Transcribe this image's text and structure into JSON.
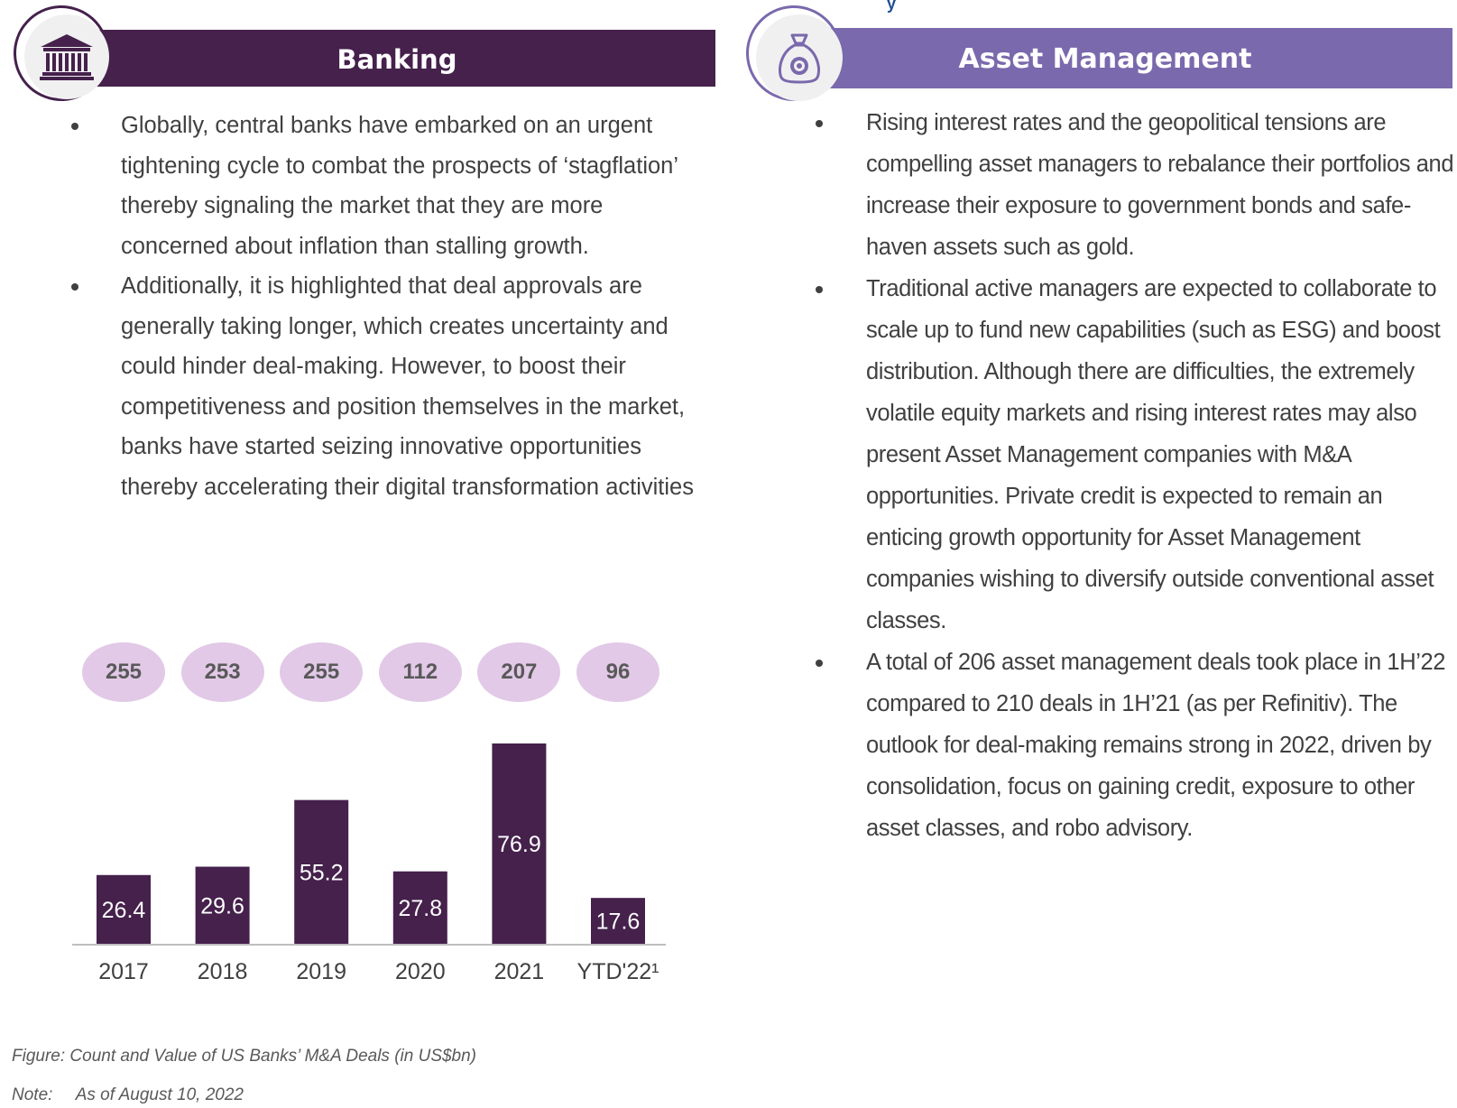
{
  "banking": {
    "title": "Banking",
    "bullets": [
      "Globally, central banks have embarked on an urgent tightening cycle to combat the prospects of ‘stagflation’ thereby signaling the market that they are more concerned about inflation than stalling growth.",
      "Additionally, it is highlighted that deal approvals are generally taking longer, which creates uncertainty and could hinder deal-making. However, to boost their competitiveness and position themselves in the market, banks have started seizing innovative opportunities thereby accelerating their digital transformation activities"
    ],
    "icon": "bank-building-icon"
  },
  "asset_management": {
    "title": "Asset Management",
    "bullets": [
      "Rising interest rates and the geopolitical tensions are compelling asset managers to rebalance their portfolios and increase their exposure to government bonds and safe-haven assets such as gold.",
      "Traditional active managers are expected to collaborate to scale up to fund new capabilities (such as ESG) and boost distribution. Although there are difficulties, the extremely volatile equity markets and rising interest rates may also present Asset Management companies with M&A opportunities. Private credit is expected to remain an enticing growth opportunity for Asset Management companies wishing to diversify outside conventional asset classes.",
      "A total of 206 asset management deals took place in 1H’22 compared to 210 deals in 1H’21 (as per Refinitiv). The outlook for deal-making remains strong in 2022, driven by consolidation, focus on gaining credit, exposure to other asset classes, and robo advisory."
    ],
    "icon": "money-bag-icon"
  },
  "chart_data": {
    "type": "bar",
    "categories": [
      "2017",
      "2018",
      "2019",
      "2020",
      "2021",
      "YTD'22¹"
    ],
    "values": [
      26.4,
      29.6,
      55.2,
      27.8,
      76.9,
      17.6
    ],
    "counts": [
      255,
      253,
      255,
      112,
      207,
      96
    ],
    "ylim": [
      0,
      80
    ],
    "grid": false,
    "colors": {
      "bar": "#45214c",
      "bubble": "#e2c9e7",
      "axis": "#bfbfbf"
    }
  },
  "figure_caption": "Figure: Count and Value of US Banks’ M&A Deals (in US$bn)",
  "note": {
    "label": "Note:",
    "text": "As of August 10, 2022"
  },
  "colors": {
    "banking": "#45214c",
    "asset_management": "#7a69ac"
  }
}
